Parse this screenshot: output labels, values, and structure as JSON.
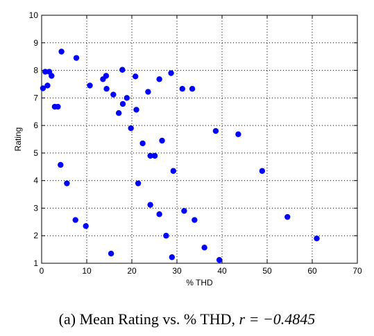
{
  "caption": {
    "prefix": "(a) Mean Rating vs. % THD, ",
    "math": "r = −0.4845"
  },
  "chart_data": {
    "type": "scatter",
    "title": "",
    "xlabel": "% THD",
    "ylabel": "Rating",
    "xlim": [
      0,
      70
    ],
    "ylim": [
      1,
      10
    ],
    "xticks": [
      0,
      10,
      20,
      30,
      40,
      50,
      60,
      70
    ],
    "yticks": [
      1,
      2,
      3,
      4,
      5,
      6,
      7,
      8,
      9,
      10
    ],
    "grid": true,
    "grid_style": "dotted",
    "marker_color": "#0000ff",
    "series": [
      {
        "points": [
          [
            0.3,
            7.35
          ],
          [
            0.8,
            7.95
          ],
          [
            1.3,
            7.45
          ],
          [
            1.7,
            7.95
          ],
          [
            2.2,
            7.8
          ],
          [
            2.9,
            6.68
          ],
          [
            3.6,
            6.68
          ],
          [
            4.2,
            4.57
          ],
          [
            4.4,
            8.68
          ],
          [
            5.6,
            3.9
          ],
          [
            7.5,
            2.57
          ],
          [
            7.7,
            8.45
          ],
          [
            9.8,
            2.35
          ],
          [
            10.7,
            7.45
          ],
          [
            13.6,
            7.68
          ],
          [
            14.3,
            7.8
          ],
          [
            14.4,
            7.33
          ],
          [
            15.4,
            1.35
          ],
          [
            15.9,
            7.12
          ],
          [
            17.1,
            6.45
          ],
          [
            17.9,
            8.02
          ],
          [
            18.0,
            6.78
          ],
          [
            18.9,
            7.0
          ],
          [
            19.8,
            5.9
          ],
          [
            20.8,
            7.78
          ],
          [
            21.0,
            6.57
          ],
          [
            21.4,
            3.9
          ],
          [
            22.4,
            5.35
          ],
          [
            23.6,
            7.22
          ],
          [
            24.1,
            3.12
          ],
          [
            24.1,
            4.9
          ],
          [
            25.1,
            4.9
          ],
          [
            26.1,
            2.78
          ],
          [
            26.1,
            7.68
          ],
          [
            26.7,
            5.45
          ],
          [
            27.6,
            2.0
          ],
          [
            28.7,
            7.9
          ],
          [
            28.9,
            1.22
          ],
          [
            29.2,
            4.35
          ],
          [
            31.2,
            7.33
          ],
          [
            31.6,
            2.9
          ],
          [
            33.4,
            7.33
          ],
          [
            33.9,
            2.57
          ],
          [
            36.1,
            1.57
          ],
          [
            38.6,
            5.8
          ],
          [
            39.4,
            1.12
          ],
          [
            43.6,
            5.68
          ],
          [
            48.9,
            4.35
          ],
          [
            54.5,
            2.68
          ],
          [
            61.0,
            1.9
          ]
        ]
      }
    ]
  }
}
